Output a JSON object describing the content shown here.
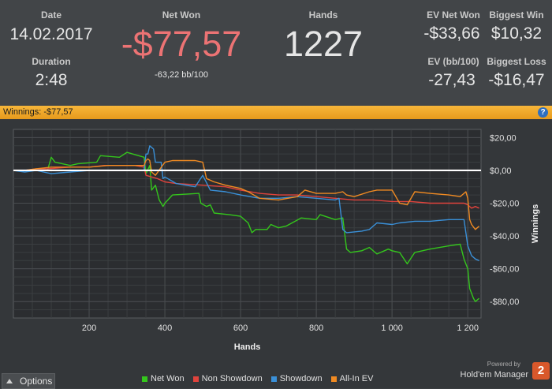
{
  "stats": {
    "date_label": "Date",
    "date_value": "14.02.2017",
    "duration_label": "Duration",
    "duration_value": "2:48",
    "netwon_label": "Net Won",
    "netwon_value": "-$77,57",
    "netwon_sub": "-63,22 bb/100",
    "hands_label": "Hands",
    "hands_value": "1227",
    "ev_net_label": "EV Net Won",
    "ev_net_value": "-$33,66",
    "ev_bb_label": "EV (bb/100)",
    "ev_bb_value": "-27,43",
    "biggest_win_label": "Biggest Win",
    "biggest_win_value": "$10,32",
    "biggest_loss_label": "Biggest Loss",
    "biggest_loss_value": "-$16,47"
  },
  "bar": {
    "title": "Winnings:",
    "value": "-$77,57",
    "help": "?"
  },
  "footer": {
    "options_label": "Options",
    "powered_by": "Powered by",
    "brand": "Hold'em Manager",
    "brand_logo": "2"
  },
  "colors": {
    "net_won": "#34c61c",
    "non_showdown": "#e0433c",
    "showdown": "#3a90d8",
    "all_in_ev": "#f08a22",
    "netwon_value": "#ec7374"
  },
  "chart_data": {
    "type": "line",
    "xlabel": "Hands",
    "ylabel": "Winnings",
    "xlim": [
      0,
      1235
    ],
    "ylim": [
      -90,
      25
    ],
    "x_ticks": [
      200,
      400,
      600,
      800,
      1000,
      1200
    ],
    "x_tick_labels": [
      "200",
      "400",
      "600",
      "800",
      "1 000",
      "1 200"
    ],
    "y_ticks": [
      20,
      0,
      -20,
      -40,
      -60,
      -80
    ],
    "y_tick_labels": [
      "$20,00",
      "$0,00",
      "-$20,00",
      "-$40,00",
      "-$60,00",
      "-$80,00"
    ],
    "zero_line": 0,
    "grid": true,
    "legend": "bottom",
    "series": [
      {
        "name": "Net Won",
        "color": "#34c61c",
        "points": [
          [
            0,
            0
          ],
          [
            20,
            0
          ],
          [
            90,
            0
          ],
          [
            100,
            8
          ],
          [
            110,
            5
          ],
          [
            150,
            3
          ],
          [
            170,
            4
          ],
          [
            220,
            5
          ],
          [
            230,
            9
          ],
          [
            280,
            8
          ],
          [
            300,
            11
          ],
          [
            345,
            8
          ],
          [
            350,
            -2
          ],
          [
            360,
            3
          ],
          [
            365,
            -12
          ],
          [
            375,
            -9
          ],
          [
            385,
            -18
          ],
          [
            395,
            -22
          ],
          [
            400,
            -20
          ],
          [
            420,
            -15
          ],
          [
            490,
            -14
          ],
          [
            495,
            -20
          ],
          [
            510,
            -22
          ],
          [
            520,
            -21
          ],
          [
            530,
            -26
          ],
          [
            570,
            -27
          ],
          [
            600,
            -28
          ],
          [
            620,
            -32
          ],
          [
            630,
            -38
          ],
          [
            640,
            -36
          ],
          [
            670,
            -36
          ],
          [
            680,
            -33
          ],
          [
            700,
            -35
          ],
          [
            720,
            -34
          ],
          [
            760,
            -29
          ],
          [
            800,
            -30
          ],
          [
            810,
            -27
          ],
          [
            850,
            -30
          ],
          [
            870,
            -29
          ],
          [
            880,
            -48
          ],
          [
            890,
            -50
          ],
          [
            920,
            -49
          ],
          [
            940,
            -47
          ],
          [
            960,
            -51
          ],
          [
            990,
            -48
          ],
          [
            1000,
            -49
          ],
          [
            1020,
            -50
          ],
          [
            1040,
            -57
          ],
          [
            1060,
            -50
          ],
          [
            1100,
            -48
          ],
          [
            1150,
            -46
          ],
          [
            1180,
            -45
          ],
          [
            1190,
            -54
          ],
          [
            1200,
            -60
          ],
          [
            1205,
            -72
          ],
          [
            1210,
            -75
          ],
          [
            1215,
            -78
          ],
          [
            1220,
            -80
          ],
          [
            1230,
            -78
          ]
        ]
      },
      {
        "name": "Non Showdown",
        "color": "#e0433c",
        "points": [
          [
            0,
            0
          ],
          [
            30,
            0
          ],
          [
            60,
            1
          ],
          [
            90,
            1
          ],
          [
            150,
            2
          ],
          [
            200,
            2
          ],
          [
            240,
            3
          ],
          [
            280,
            3
          ],
          [
            300,
            3
          ],
          [
            320,
            3
          ],
          [
            345,
            2
          ],
          [
            350,
            -3
          ],
          [
            380,
            -5
          ],
          [
            400,
            -7
          ],
          [
            430,
            -8
          ],
          [
            500,
            -9
          ],
          [
            560,
            -10
          ],
          [
            600,
            -12
          ],
          [
            650,
            -14
          ],
          [
            700,
            -15
          ],
          [
            750,
            -15
          ],
          [
            800,
            -16
          ],
          [
            850,
            -17
          ],
          [
            900,
            -18
          ],
          [
            950,
            -18
          ],
          [
            1000,
            -19
          ],
          [
            1050,
            -19
          ],
          [
            1100,
            -20
          ],
          [
            1150,
            -20
          ],
          [
            1190,
            -20
          ],
          [
            1200,
            -21
          ],
          [
            1210,
            -23
          ],
          [
            1220,
            -22
          ],
          [
            1230,
            -23
          ]
        ]
      },
      {
        "name": "Showdown",
        "color": "#3a90d8",
        "points": [
          [
            0,
            0
          ],
          [
            30,
            -1
          ],
          [
            60,
            0
          ],
          [
            100,
            -2
          ],
          [
            150,
            -1
          ],
          [
            200,
            0
          ],
          [
            250,
            0
          ],
          [
            300,
            0
          ],
          [
            345,
            0
          ],
          [
            350,
            10
          ],
          [
            355,
            10
          ],
          [
            360,
            15
          ],
          [
            370,
            13
          ],
          [
            375,
            5
          ],
          [
            390,
            5
          ],
          [
            395,
            -5
          ],
          [
            400,
            -4
          ],
          [
            430,
            -8
          ],
          [
            480,
            -10
          ],
          [
            500,
            -3
          ],
          [
            520,
            -12
          ],
          [
            560,
            -13
          ],
          [
            600,
            -15
          ],
          [
            650,
            -17
          ],
          [
            700,
            -17
          ],
          [
            750,
            -16
          ],
          [
            800,
            -17
          ],
          [
            850,
            -18
          ],
          [
            860,
            -17
          ],
          [
            870,
            -36
          ],
          [
            880,
            -38
          ],
          [
            920,
            -37
          ],
          [
            940,
            -36
          ],
          [
            960,
            -32
          ],
          [
            1000,
            -33
          ],
          [
            1020,
            -32
          ],
          [
            1060,
            -31
          ],
          [
            1100,
            -31
          ],
          [
            1150,
            -30
          ],
          [
            1190,
            -30
          ],
          [
            1200,
            -46
          ],
          [
            1210,
            -52
          ],
          [
            1220,
            -54
          ],
          [
            1230,
            -55
          ]
        ]
      },
      {
        "name": "All-In EV",
        "color": "#f08a22",
        "points": [
          [
            0,
            0
          ],
          [
            30,
            0
          ],
          [
            60,
            1
          ],
          [
            100,
            2
          ],
          [
            150,
            2
          ],
          [
            200,
            2
          ],
          [
            250,
            3
          ],
          [
            300,
            3
          ],
          [
            345,
            3
          ],
          [
            350,
            6
          ],
          [
            355,
            7
          ],
          [
            360,
            6
          ],
          [
            365,
            -1
          ],
          [
            375,
            -3
          ],
          [
            400,
            5
          ],
          [
            420,
            6
          ],
          [
            480,
            6
          ],
          [
            500,
            5
          ],
          [
            510,
            -5
          ],
          [
            530,
            -7
          ],
          [
            560,
            -9
          ],
          [
            600,
            -11
          ],
          [
            620,
            -13
          ],
          [
            650,
            -17
          ],
          [
            700,
            -18
          ],
          [
            750,
            -16
          ],
          [
            770,
            -12
          ],
          [
            800,
            -14
          ],
          [
            850,
            -14
          ],
          [
            870,
            -13
          ],
          [
            880,
            -15
          ],
          [
            900,
            -16
          ],
          [
            940,
            -13
          ],
          [
            960,
            -12
          ],
          [
            1000,
            -12
          ],
          [
            1020,
            -20
          ],
          [
            1040,
            -21
          ],
          [
            1060,
            -13
          ],
          [
            1100,
            -14
          ],
          [
            1150,
            -15
          ],
          [
            1180,
            -16
          ],
          [
            1195,
            -13
          ],
          [
            1200,
            -17
          ],
          [
            1205,
            -30
          ],
          [
            1210,
            -33
          ],
          [
            1220,
            -36
          ],
          [
            1230,
            -34
          ]
        ]
      }
    ]
  }
}
